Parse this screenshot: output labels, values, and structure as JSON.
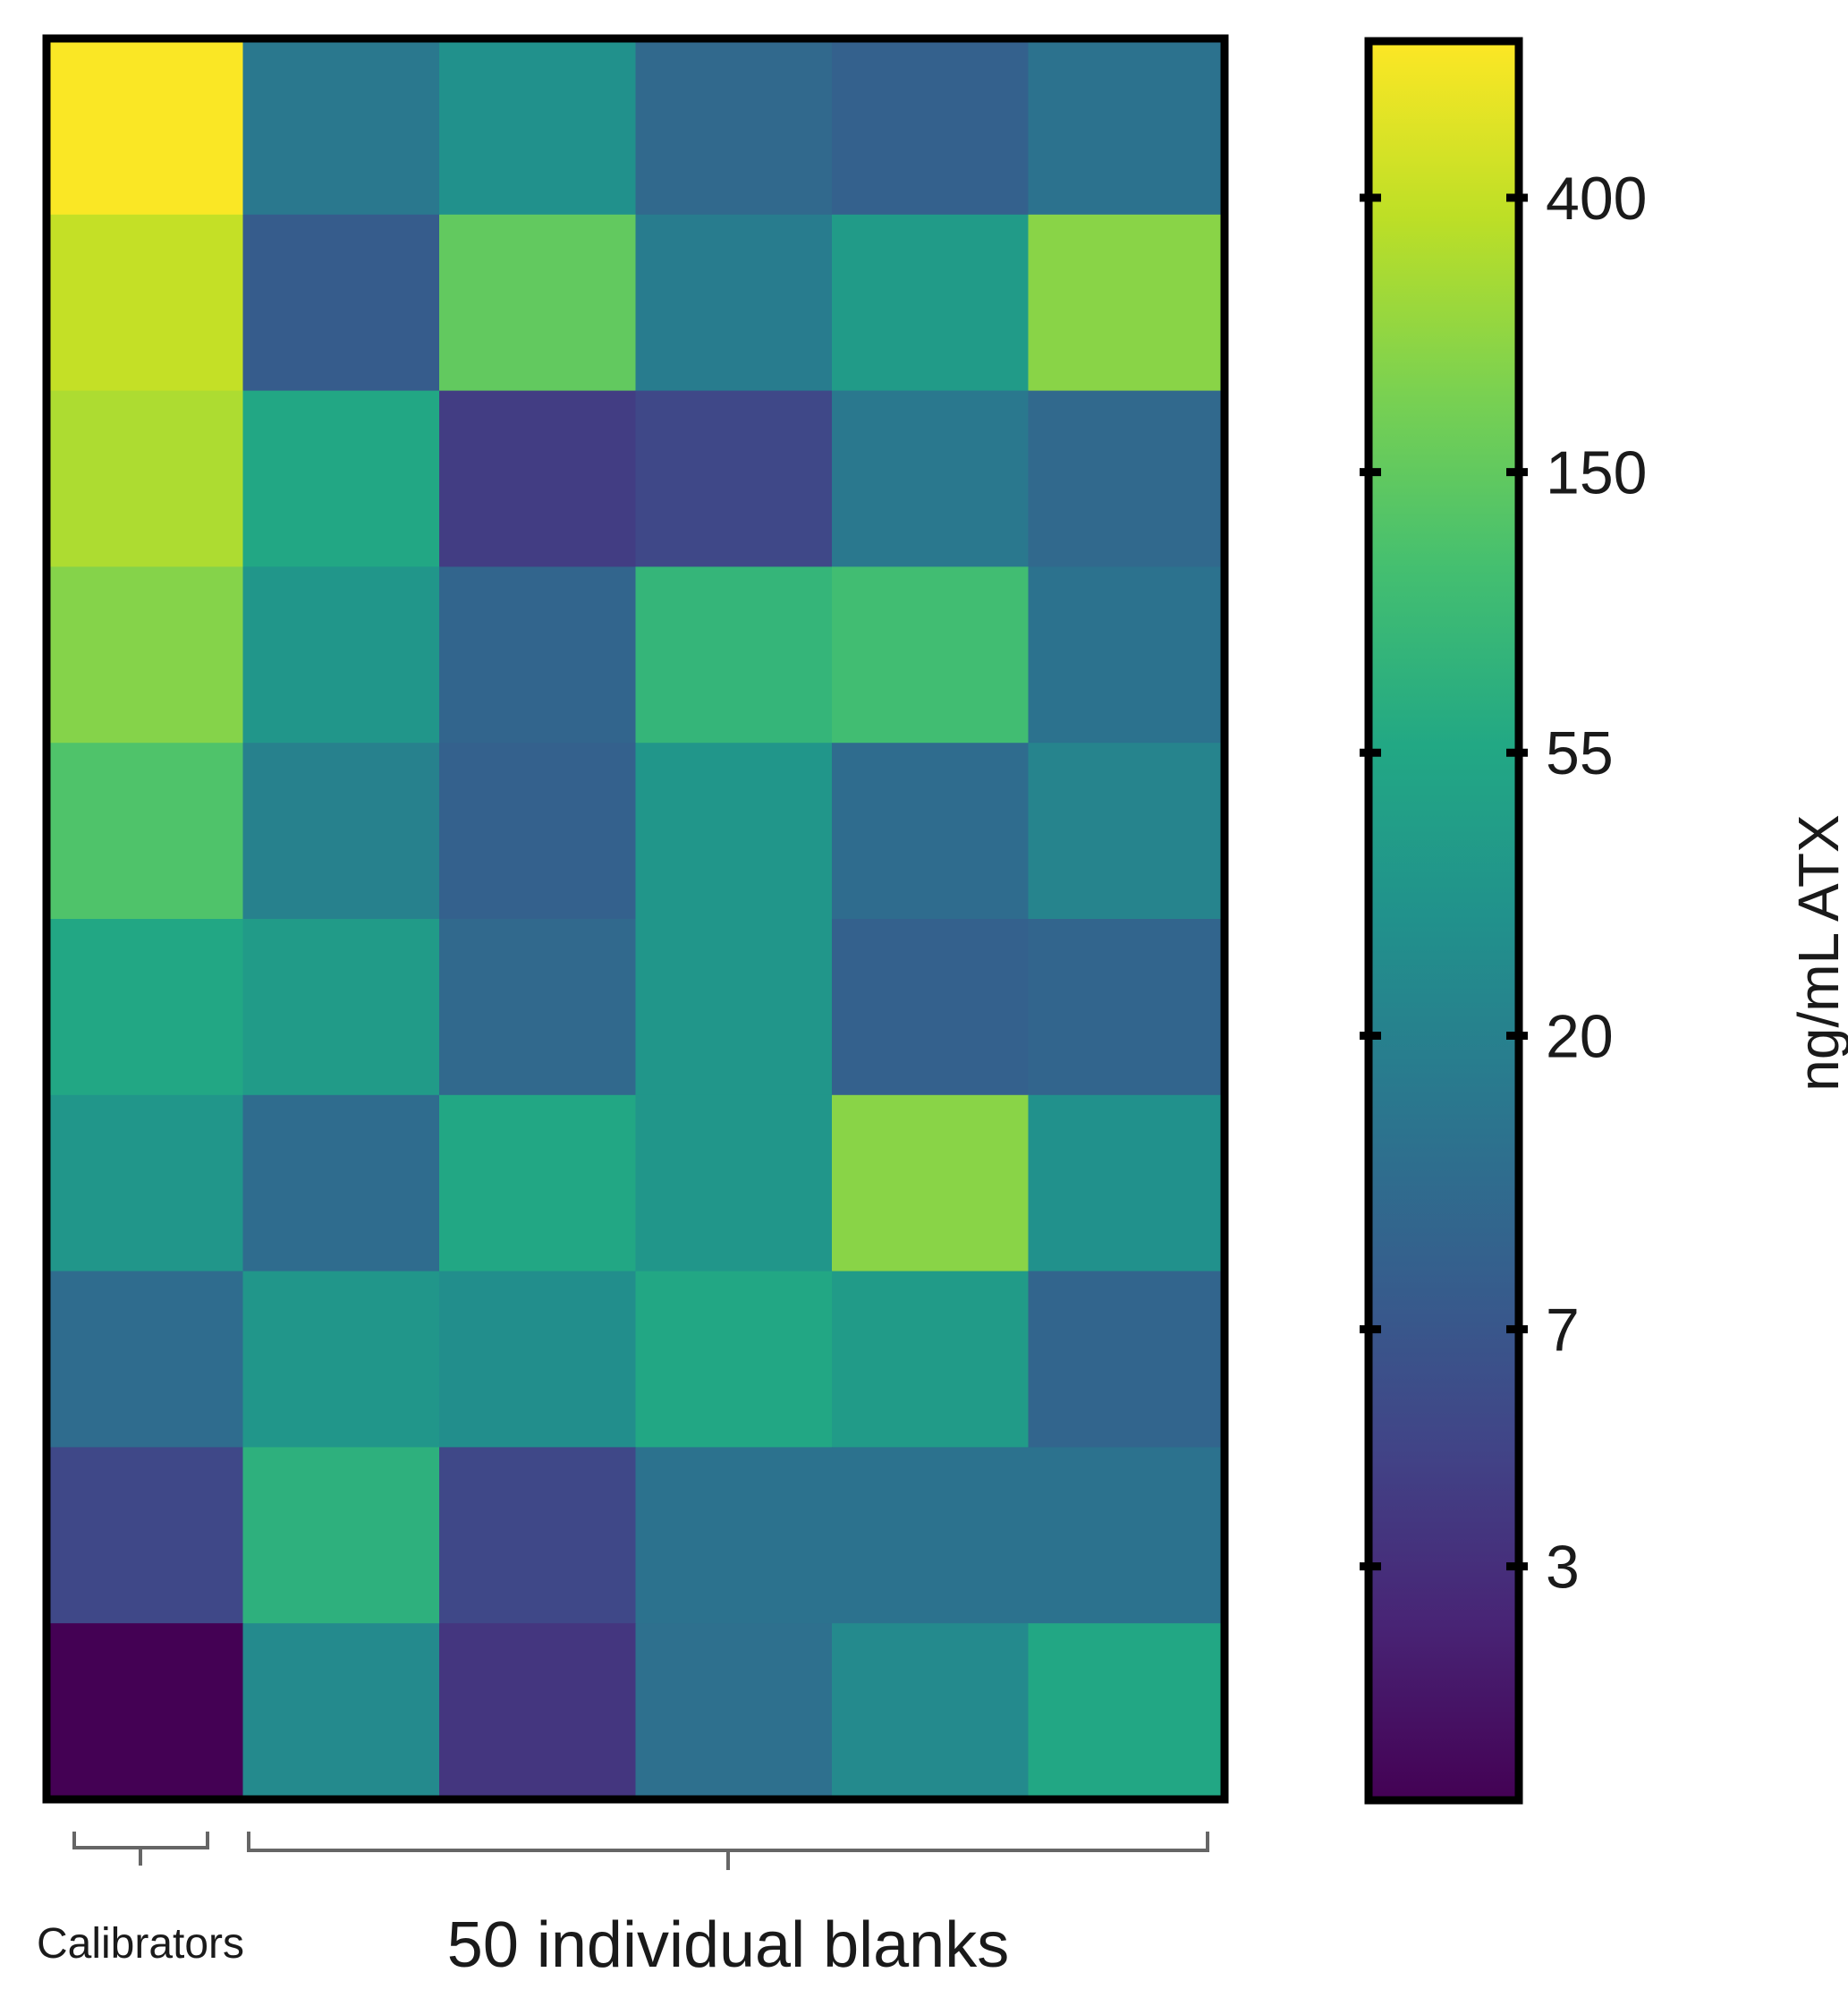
{
  "chart_data": {
    "type": "heatmap",
    "colorscale": "viridis",
    "colorbar": {
      "label": "ng/mL ATX",
      "scale": "log",
      "range": [
        1.3,
        700
      ],
      "ticks": [
        400,
        150,
        55,
        20,
        7,
        3
      ],
      "tick_labels": [
        "400",
        "150",
        "55",
        "20",
        "7",
        "3"
      ]
    },
    "group_labels": {
      "calibrators": "Calibrators",
      "blanks": "50 individual blanks"
    },
    "rows": 10,
    "cols": 6,
    "values": [
      [
        680,
        16,
        30,
        11,
        9,
        14
      ],
      [
        400,
        8,
        150,
        18,
        40,
        230
      ],
      [
        320,
        55,
        4,
        5,
        16,
        11
      ],
      [
        220,
        35,
        10,
        80,
        100,
        14
      ],
      [
        120,
        20,
        9,
        35,
        12,
        22
      ],
      [
        55,
        40,
        11,
        35,
        9,
        10
      ],
      [
        35,
        12,
        55,
        35,
        230,
        30
      ],
      [
        12,
        35,
        28,
        55,
        40,
        10
      ],
      [
        5,
        70,
        5,
        14,
        14,
        14
      ],
      [
        1.3,
        25,
        3.5,
        13,
        25,
        55
      ]
    ]
  }
}
